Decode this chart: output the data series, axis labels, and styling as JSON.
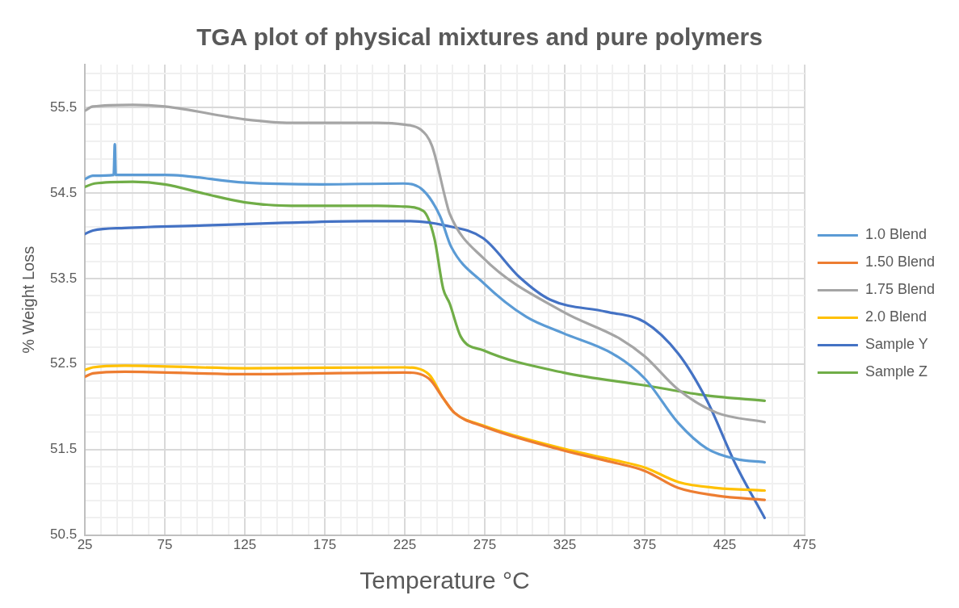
{
  "chart_data": {
    "type": "line",
    "title": "TGA plot of physical mixtures and pure polymers",
    "xlabel": "Temperature °C",
    "ylabel": "% Weight Loss",
    "xlim": [
      25,
      475
    ],
    "xticks": [
      25,
      {
        "value": 35,
        "label": null
      },
      {
        "value": 45,
        "label": null
      },
      {
        "value": 55,
        "label": null
      },
      {
        "value": 65,
        "label": null
      },
      75,
      {
        "value": 85,
        "label": null
      },
      {
        "value": 95,
        "label": null
      },
      {
        "value": 105,
        "label": null
      },
      {
        "value": 115,
        "label": null
      },
      125,
      {
        "value": 135,
        "label": null
      },
      {
        "value": 145,
        "label": null
      },
      {
        "value": 155,
        "label": null
      },
      {
        "value": 165,
        "label": null
      },
      175,
      {
        "value": 185,
        "label": null
      },
      {
        "value": 195,
        "label": null
      },
      {
        "value": 205,
        "label": null
      },
      {
        "value": 215,
        "label": null
      },
      225,
      {
        "value": 235,
        "label": null
      },
      {
        "value": 245,
        "label": null
      },
      {
        "value": 255,
        "label": null
      },
      {
        "value": 265,
        "label": null
      },
      275,
      {
        "value": 285,
        "label": null
      },
      {
        "value": 295,
        "label": null
      },
      {
        "value": 305,
        "label": null
      },
      {
        "value": 315,
        "label": null
      },
      325,
      {
        "value": 335,
        "label": null
      },
      {
        "value": 345,
        "label": null
      },
      {
        "value": 355,
        "label": null
      },
      {
        "value": 365,
        "label": null
      },
      375,
      {
        "value": 385,
        "label": null
      },
      {
        "value": 395,
        "label": null
      },
      {
        "value": 405,
        "label": null
      },
      {
        "value": 415,
        "label": null
      },
      425,
      {
        "value": 435,
        "label": null
      },
      {
        "value": 445,
        "label": null
      },
      {
        "value": 455,
        "label": null
      },
      {
        "value": 465,
        "label": null
      },
      475
    ],
    "ylim": [
      50.5,
      56
    ],
    "yticks": [
      50.5,
      {
        "value": 50.7,
        "label": null
      },
      {
        "value": 50.9,
        "label": null
      },
      {
        "value": 51.1,
        "label": null
      },
      {
        "value": 51.3,
        "label": null
      },
      51.5,
      {
        "value": 51.7,
        "label": null
      },
      {
        "value": 51.9,
        "label": null
      },
      {
        "value": 52.1,
        "label": null
      },
      {
        "value": 52.3,
        "label": null
      },
      52.5,
      {
        "value": 52.7,
        "label": null
      },
      {
        "value": 52.9,
        "label": null
      },
      {
        "value": 53.1,
        "label": null
      },
      {
        "value": 53.3,
        "label": null
      },
      53.5,
      {
        "value": 53.7,
        "label": null
      },
      {
        "value": 53.9,
        "label": null
      },
      {
        "value": 54.1,
        "label": null
      },
      {
        "value": 54.3,
        "label": null
      },
      54.5,
      {
        "value": 54.7,
        "label": null
      },
      {
        "value": 54.9,
        "label": null
      },
      {
        "value": 55.1,
        "label": null
      },
      {
        "value": 55.3,
        "label": null
      },
      55.5,
      {
        "value": 55.7,
        "label": null
      },
      {
        "value": 55.9,
        "label": null
      }
    ],
    "grid": true,
    "legend": "right",
    "marker": "none",
    "line_style": "solid",
    "series": [
      {
        "name": "1.0 Blend",
        "color": "#5b9bd5",
        "x": [
          25,
          30,
          43,
          43.7,
          44.3,
          75,
          125,
          173,
          224,
          236.5,
          247,
          254,
          274,
          301,
          324,
          355,
          375,
          396,
          414,
          432,
          450
        ],
        "values": [
          54.66,
          54.7,
          54.71,
          55.07,
          54.71,
          54.71,
          54.62,
          54.6,
          54.61,
          54.53,
          54.23,
          53.87,
          53.45,
          53.05,
          52.86,
          52.62,
          52.33,
          51.81,
          51.51,
          51.39,
          51.35
        ]
      },
      {
        "name": "1.50 Blend",
        "color": "#ed7d31",
        "x": [
          25,
          30,
          50,
          125,
          225,
          240,
          249,
          256,
          274,
          324,
          355,
          375,
          396,
          420,
          450
        ],
        "values": [
          52.35,
          52.39,
          52.41,
          52.38,
          52.4,
          52.33,
          52.1,
          51.93,
          51.77,
          51.49,
          51.35,
          51.25,
          51.05,
          50.96,
          50.91
        ]
      },
      {
        "name": "1.75 Blend",
        "color": "#a5a5a5",
        "x": [
          25,
          30,
          55,
          75,
          125,
          154,
          208,
          224,
          235,
          242,
          251,
          253,
          274,
          324,
          360,
          375,
          396,
          420,
          450
        ],
        "values": [
          55.46,
          55.51,
          55.53,
          55.51,
          55.36,
          55.32,
          55.32,
          55.3,
          55.24,
          55.05,
          54.39,
          54.26,
          53.74,
          53.11,
          52.79,
          52.59,
          52.2,
          51.93,
          51.82
        ]
      },
      {
        "name": "2.0 Blend",
        "color": "#ffc000",
        "x": [
          25,
          30,
          50,
          125,
          225,
          240,
          249,
          256,
          274,
          324,
          355,
          375,
          396,
          420,
          450
        ],
        "values": [
          52.43,
          52.46,
          52.48,
          52.45,
          52.46,
          52.38,
          52.1,
          51.93,
          51.78,
          51.51,
          51.38,
          51.29,
          51.12,
          51.05,
          51.02
        ]
      },
      {
        "name": "Sample Y",
        "color": "#4472c4",
        "x": [
          25,
          30,
          50,
          100,
          150,
          200,
          226,
          250,
          274,
          297,
          316,
          351,
          375,
          396,
          414,
          432,
          450
        ],
        "values": [
          54.02,
          54.06,
          54.09,
          54.12,
          54.15,
          54.17,
          54.17,
          54.12,
          53.97,
          53.51,
          53.25,
          53.11,
          52.99,
          52.62,
          52.07,
          51.32,
          50.7
        ]
      },
      {
        "name": "Sample Z",
        "color": "#70ad47",
        "x": [
          25,
          31,
          55,
          75,
          100,
          125,
          154,
          208,
          224,
          236.5,
          243.5,
          249,
          253,
          260,
          274,
          324,
          375,
          414,
          450
        ],
        "values": [
          54.57,
          54.61,
          54.63,
          54.6,
          54.49,
          54.39,
          54.35,
          54.35,
          54.34,
          54.29,
          53.97,
          53.38,
          53.21,
          52.82,
          52.66,
          52.4,
          52.25,
          52.13,
          52.07
        ]
      }
    ]
  }
}
